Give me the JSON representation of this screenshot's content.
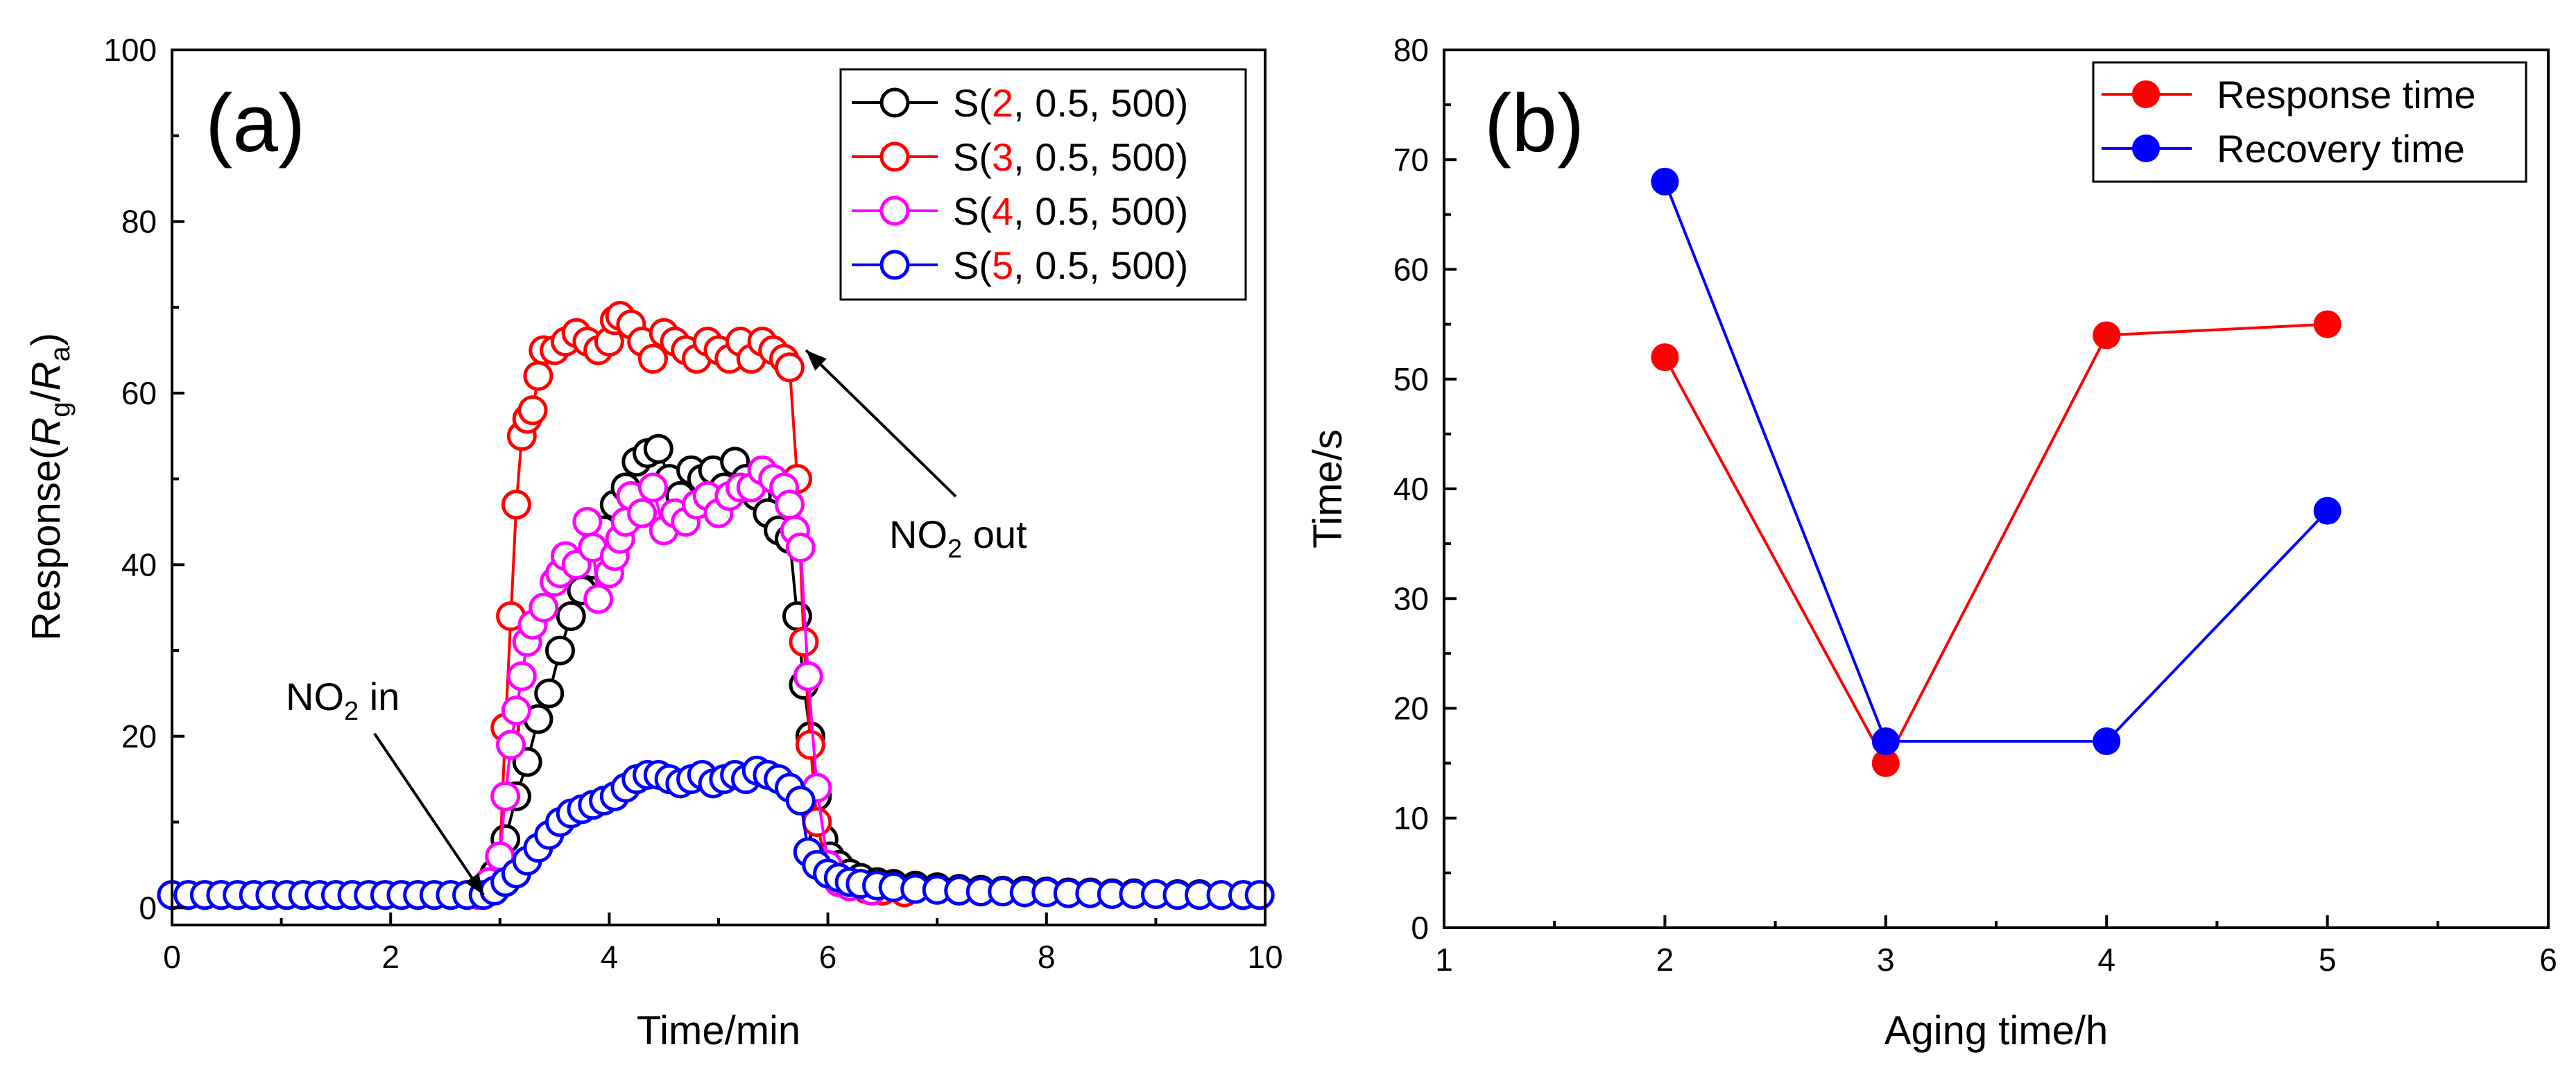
{
  "chart_data": [
    {
      "panel": "(a)",
      "type": "line",
      "xlabel": "Time/min",
      "ylabel": "Response(Rg/Ra)",
      "ylabel_main": "Response(",
      "ylabel_r1": "R",
      "ylabel_sub1": "g",
      "ylabel_slash": "/",
      "ylabel_r2": "R",
      "ylabel_sub2": "a",
      "ylabel_end": ")",
      "xlim": [
        0,
        10
      ],
      "ylim": [
        -2,
        100
      ],
      "xticks": [
        "0",
        "2",
        "4",
        "6",
        "8",
        "10"
      ],
      "yticks": [
        "0",
        "20",
        "40",
        "60",
        "80",
        "100"
      ],
      "legend_position": "top-right",
      "annotations": [
        {
          "text_main": "NO",
          "text_sub": "2",
          "text_end": " in",
          "at_x": 2.85,
          "at_y": 1.5
        },
        {
          "text_main": "NO",
          "text_sub": "2",
          "text_end": " out",
          "at_x": 5.8,
          "at_y": 65
        }
      ],
      "series": [
        {
          "name": "S(2, 0.5, 500)",
          "prefix": "S(",
          "param": "2",
          "suffix": ", 0.5, 500)",
          "color": "#000000",
          "param_color": "#ff0000",
          "x": [
            0,
            0.15,
            0.3,
            0.45,
            0.6,
            0.75,
            0.9,
            1.05,
            1.2,
            1.35,
            1.5,
            1.65,
            1.8,
            1.95,
            2.1,
            2.25,
            2.4,
            2.55,
            2.7,
            2.85,
            2.95,
            3.05,
            3.15,
            3.25,
            3.35,
            3.45,
            3.55,
            3.65,
            3.75,
            3.85,
            3.95,
            4.05,
            4.15,
            4.25,
            4.35,
            4.45,
            4.55,
            4.65,
            4.75,
            4.85,
            4.95,
            5.05,
            5.15,
            5.25,
            5.35,
            5.45,
            5.55,
            5.65,
            5.72,
            5.78,
            5.84,
            5.9,
            5.96,
            6.02,
            6.1,
            6.2,
            6.3,
            6.45,
            6.6,
            6.8,
            7.0,
            7.2,
            7.4,
            7.6,
            7.8,
            8.0,
            8.2,
            8.4,
            8.6,
            8.8,
            9.0,
            9.2,
            9.4,
            9.6,
            9.8,
            9.95
          ],
          "y": [
            1.5,
            1.5,
            1.5,
            1.5,
            1.5,
            1.5,
            1.5,
            1.5,
            1.5,
            1.5,
            1.5,
            1.5,
            1.5,
            1.5,
            1.5,
            1.5,
            1.5,
            1.5,
            1.5,
            2,
            4,
            8,
            13,
            17,
            22,
            25,
            30,
            34,
            37,
            40,
            44,
            47,
            49,
            52,
            53,
            53.5,
            50,
            48,
            51,
            50,
            51,
            49,
            52,
            50,
            48,
            46,
            44,
            43,
            34,
            26,
            20,
            13,
            8,
            6,
            5,
            4,
            3.5,
            3,
            2.8,
            2.6,
            2.4,
            2.2,
            2.1,
            2,
            2,
            1.9,
            1.8,
            1.8,
            1.7,
            1.7,
            1.6,
            1.6,
            1.6,
            1.5,
            1.5,
            1.5
          ]
        },
        {
          "name": "S(3, 0.5, 500)",
          "prefix": "S(",
          "param": "3",
          "suffix": ", 0.5, 500)",
          "color": "#ff0000",
          "param_color": "#ff0000",
          "x": [
            2.8,
            2.9,
            3.0,
            3.05,
            3.1,
            3.15,
            3.2,
            3.25,
            3.3,
            3.35,
            3.4,
            3.5,
            3.6,
            3.7,
            3.8,
            3.9,
            4.0,
            4.05,
            4.1,
            4.2,
            4.3,
            4.4,
            4.5,
            4.6,
            4.7,
            4.8,
            4.9,
            5.0,
            5.1,
            5.2,
            5.3,
            5.4,
            5.5,
            5.6,
            5.65,
            5.72,
            5.78,
            5.84,
            5.9,
            6.0,
            6.1,
            6.2,
            6.35,
            6.5,
            6.7
          ],
          "y": [
            1.5,
            2,
            6,
            21,
            34,
            47,
            55,
            57,
            58,
            62,
            65,
            65,
            66,
            67,
            66,
            65,
            66,
            68.5,
            69,
            68,
            66,
            64,
            67,
            66,
            65,
            64,
            66,
            65,
            64,
            66,
            64,
            66,
            65,
            64,
            63,
            50,
            31,
            19,
            10,
            4,
            3,
            2.5,
            2.2,
            2,
            1.8
          ]
        },
        {
          "name": "S(4, 0.5, 500)",
          "prefix": "S(",
          "param": "4",
          "suffix": ", 0.5, 500)",
          "color": "#ff00ff",
          "param_color": "#ff0000",
          "x": [
            2.8,
            2.9,
            3.0,
            3.05,
            3.1,
            3.15,
            3.2,
            3.25,
            3.3,
            3.4,
            3.5,
            3.55,
            3.6,
            3.7,
            3.8,
            3.85,
            3.9,
            4.0,
            4.05,
            4.1,
            4.15,
            4.2,
            4.3,
            4.4,
            4.5,
            4.6,
            4.7,
            4.8,
            4.9,
            5.0,
            5.1,
            5.2,
            5.3,
            5.4,
            5.5,
            5.6,
            5.65,
            5.7,
            5.75,
            5.82,
            5.9,
            6.0,
            6.1,
            6.2,
            6.4
          ],
          "y": [
            1.5,
            3,
            6,
            13,
            19,
            23,
            27,
            31,
            33,
            35,
            38,
            39,
            41,
            40,
            45,
            42,
            36,
            39,
            41,
            43,
            45,
            48,
            46,
            49,
            44,
            46,
            45,
            47,
            48,
            46,
            48,
            49,
            49,
            51,
            50,
            49,
            47,
            44,
            42,
            27,
            14,
            5,
            3,
            2.5,
            2
          ]
        },
        {
          "name": "S(5, 0.5, 500)",
          "prefix": "S(",
          "param": "5",
          "suffix": ", 0.5, 500)",
          "color": "#0000ff",
          "param_color": "#ff0000",
          "x": [
            0,
            0.15,
            0.3,
            0.45,
            0.6,
            0.75,
            0.9,
            1.05,
            1.2,
            1.35,
            1.5,
            1.65,
            1.8,
            1.95,
            2.1,
            2.25,
            2.4,
            2.55,
            2.7,
            2.85,
            2.95,
            3.05,
            3.15,
            3.25,
            3.35,
            3.45,
            3.55,
            3.65,
            3.75,
            3.85,
            3.95,
            4.05,
            4.15,
            4.25,
            4.35,
            4.45,
            4.55,
            4.65,
            4.75,
            4.85,
            4.95,
            5.05,
            5.15,
            5.25,
            5.35,
            5.45,
            5.55,
            5.65,
            5.75,
            5.82,
            5.9,
            6.0,
            6.1,
            6.2,
            6.3,
            6.45,
            6.6,
            6.8,
            7.0,
            7.2,
            7.4,
            7.6,
            7.8,
            8.0,
            8.2,
            8.4,
            8.6,
            8.8,
            9.0,
            9.2,
            9.4,
            9.6,
            9.8,
            9.95
          ],
          "y": [
            1.5,
            1.5,
            1.5,
            1.5,
            1.5,
            1.5,
            1.5,
            1.5,
            1.5,
            1.5,
            1.5,
            1.5,
            1.5,
            1.5,
            1.5,
            1.5,
            1.5,
            1.5,
            1.5,
            1.5,
            2,
            3,
            4,
            5.5,
            7,
            8.5,
            10,
            11,
            11.5,
            12,
            12.5,
            13,
            14,
            15,
            15.5,
            15.5,
            15,
            14.5,
            15,
            15.5,
            14.5,
            15,
            15.5,
            15,
            16,
            15.5,
            15,
            14,
            12.5,
            6.5,
            5,
            4,
            3.5,
            3,
            2.8,
            2.6,
            2.4,
            2.2,
            2.1,
            2,
            1.9,
            1.9,
            1.8,
            1.8,
            1.7,
            1.7,
            1.6,
            1.6,
            1.6,
            1.5,
            1.5,
            1.5,
            1.5,
            1.5
          ]
        }
      ]
    },
    {
      "panel": "(b)",
      "type": "line",
      "xlabel": "Aging time/h",
      "ylabel": "Time/s",
      "xlim": [
        1,
        6
      ],
      "ylim": [
        0,
        80
      ],
      "xticks": [
        "1",
        "2",
        "3",
        "4",
        "5",
        "6"
      ],
      "yticks": [
        "0",
        "10",
        "20",
        "30",
        "40",
        "50",
        "60",
        "70",
        "80"
      ],
      "legend_position": "top-right",
      "x": [
        2,
        3,
        4,
        5
      ],
      "series": [
        {
          "name": "Response time",
          "color": "#ff0000",
          "values": [
            52,
            15,
            54,
            55
          ]
        },
        {
          "name": "Recovery time",
          "color": "#0000ff",
          "values": [
            68,
            17,
            17,
            38
          ]
        }
      ]
    }
  ]
}
